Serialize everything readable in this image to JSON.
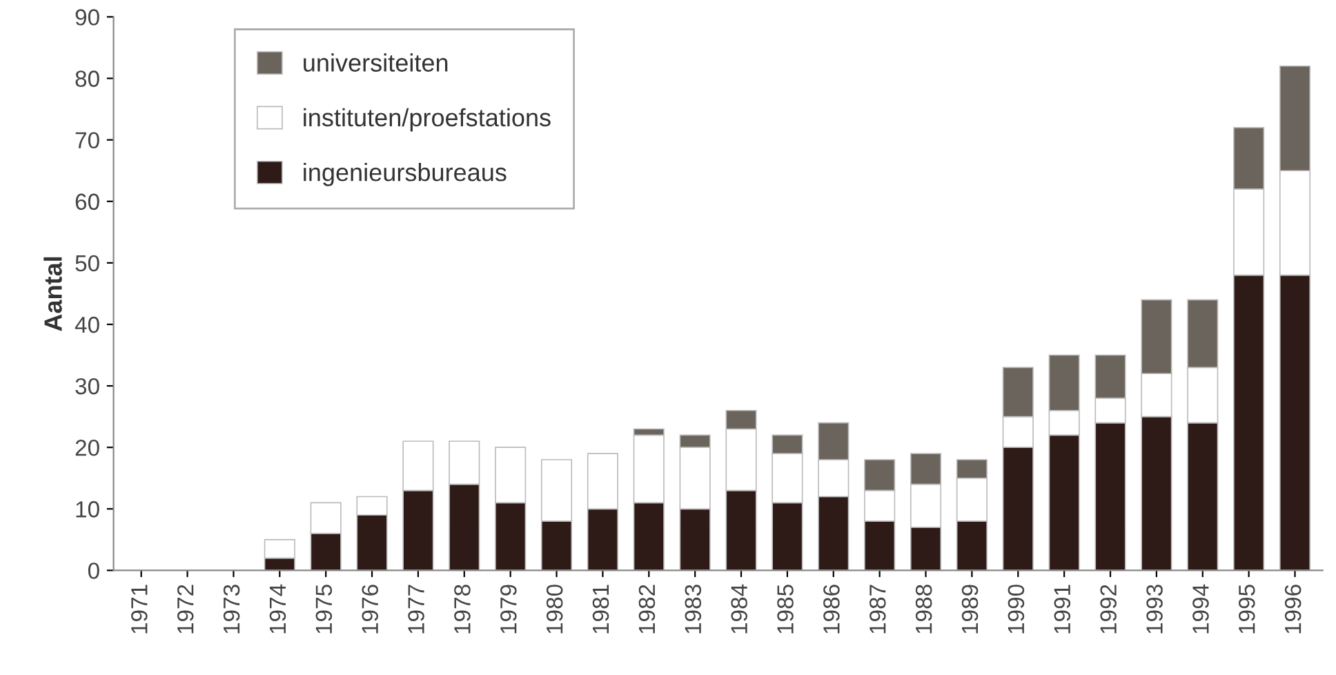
{
  "chart_data": {
    "type": "bar",
    "stacked": true,
    "ylabel": "Aantal",
    "categories": [
      "1971",
      "1972",
      "1973",
      "1974",
      "1975",
      "1976",
      "1977",
      "1978",
      "1979",
      "1980",
      "1981",
      "1982",
      "1983",
      "1984",
      "1985",
      "1986",
      "1987",
      "1988",
      "1989",
      "1990",
      "1991",
      "1992",
      "1993",
      "1994",
      "1995",
      "1996"
    ],
    "series": [
      {
        "name": "ingenieursbureaus",
        "color": "#2e1a16",
        "values": [
          0,
          0,
          0,
          2,
          6,
          9,
          13,
          14,
          11,
          8,
          10,
          11,
          10,
          13,
          11,
          12,
          8,
          7,
          8,
          20,
          22,
          24,
          25,
          24,
          48,
          48
        ]
      },
      {
        "name": "instituten/proefstations",
        "color": "#ffffff",
        "values": [
          0,
          0,
          0,
          3,
          5,
          3,
          8,
          7,
          9,
          10,
          9,
          11,
          10,
          10,
          8,
          6,
          5,
          7,
          7,
          5,
          4,
          4,
          7,
          9,
          14,
          17
        ]
      },
      {
        "name": "universiteiten",
        "color": "#6b645c",
        "values": [
          0,
          0,
          0,
          0,
          0,
          0,
          0,
          0,
          0,
          0,
          0,
          1,
          2,
          3,
          3,
          6,
          5,
          5,
          3,
          8,
          9,
          7,
          12,
          11,
          10,
          17
        ]
      }
    ],
    "ylim": [
      0,
      90
    ],
    "yticks": [
      0,
      10,
      20,
      30,
      40,
      50,
      60,
      70,
      80,
      90
    ],
    "grid": false,
    "legend": "top left"
  }
}
